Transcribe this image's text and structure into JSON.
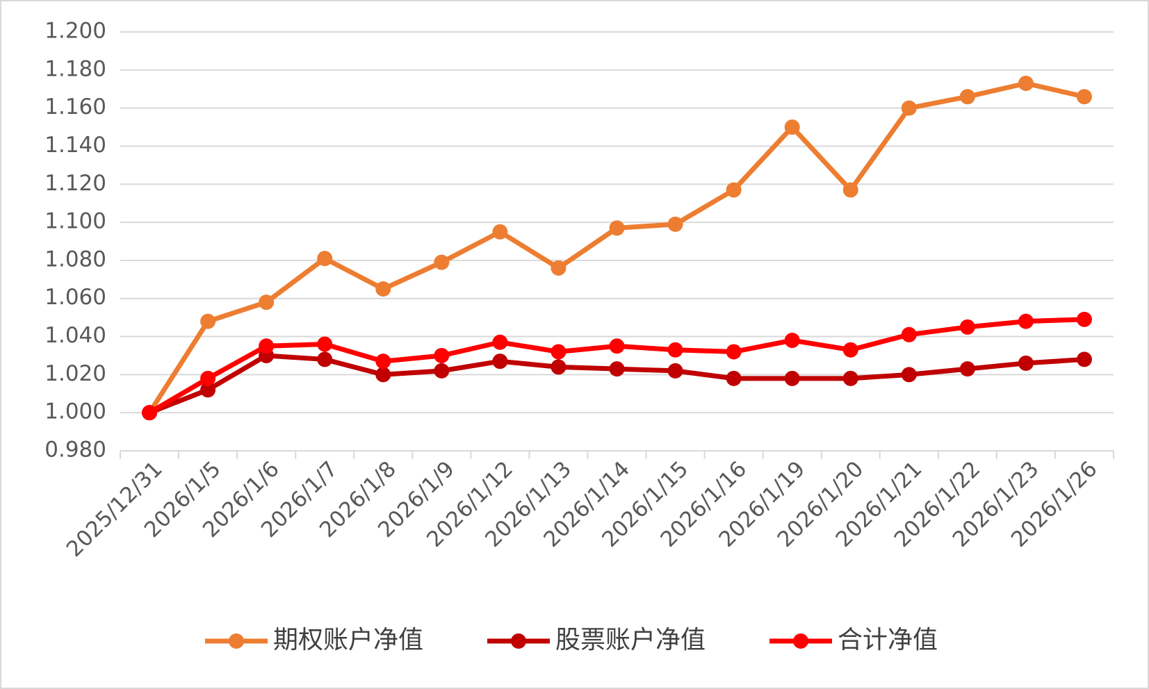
{
  "chart_data": {
    "type": "line",
    "categories": [
      "2025/12/31",
      "2026/1/5",
      "2026/1/6",
      "2026/1/7",
      "2026/1/8",
      "2026/1/9",
      "2026/1/12",
      "2026/1/13",
      "2026/1/14",
      "2026/1/15",
      "2026/1/16",
      "2026/1/19",
      "2026/1/20",
      "2026/1/21",
      "2026/1/22",
      "2026/1/23",
      "2026/1/26"
    ],
    "series": [
      {
        "name": "期权账户净值",
        "color": "#ed7d31",
        "values": [
          1.0,
          1.048,
          1.058,
          1.081,
          1.065,
          1.079,
          1.095,
          1.076,
          1.097,
          1.099,
          1.117,
          1.15,
          1.117,
          1.16,
          1.166,
          1.173,
          1.166
        ]
      },
      {
        "name": "股票账户净值",
        "color": "#c00000",
        "values": [
          1.0,
          1.012,
          1.03,
          1.028,
          1.02,
          1.022,
          1.027,
          1.024,
          1.023,
          1.022,
          1.018,
          1.018,
          1.018,
          1.02,
          1.023,
          1.026,
          1.028
        ]
      },
      {
        "name": "合计净值",
        "color": "#ff0000",
        "values": [
          1.0,
          1.018,
          1.035,
          1.036,
          1.027,
          1.03,
          1.037,
          1.032,
          1.035,
          1.033,
          1.032,
          1.038,
          1.033,
          1.041,
          1.045,
          1.048,
          1.049
        ]
      }
    ],
    "ylim": [
      0.98,
      1.2
    ],
    "yticks": [
      {
        "value": 0.98,
        "label": "0.980"
      },
      {
        "value": 1.0,
        "label": "1.000"
      },
      {
        "value": 1.02,
        "label": "1.020"
      },
      {
        "value": 1.04,
        "label": "1.040"
      },
      {
        "value": 1.06,
        "label": "1.060"
      },
      {
        "value": 1.08,
        "label": "1.080"
      },
      {
        "value": 1.1,
        "label": "1.100"
      },
      {
        "value": 1.12,
        "label": "1.120"
      },
      {
        "value": 1.14,
        "label": "1.140"
      },
      {
        "value": 1.16,
        "label": "1.160"
      },
      {
        "value": 1.18,
        "label": "1.180"
      },
      {
        "value": 1.2,
        "label": "1.200"
      }
    ],
    "grid": true,
    "legend": "bottom"
  }
}
